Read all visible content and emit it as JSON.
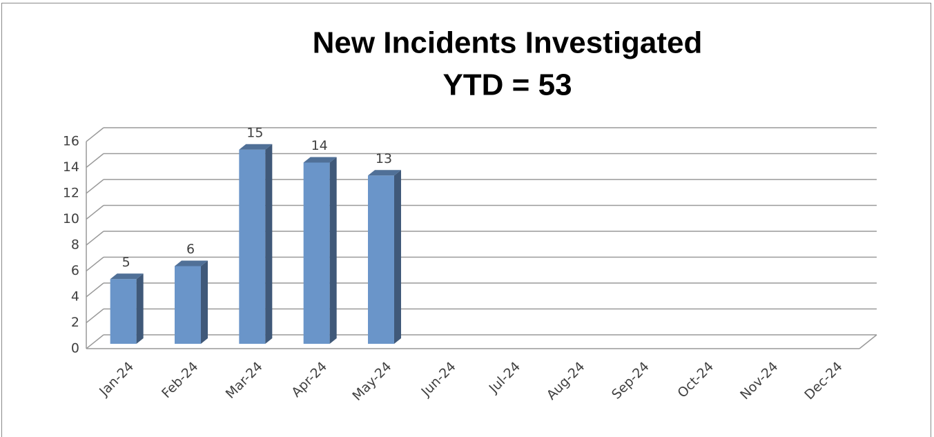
{
  "chart_data": {
    "type": "bar3d",
    "title": [
      "New Incidents Investigated",
      "YTD = 53"
    ],
    "categories": [
      "Jan-24",
      "Feb-24",
      "Mar-24",
      "Apr-24",
      "May-24",
      "Jun-24",
      "Jul-24",
      "Aug-24",
      "Sep-24",
      "Oct-24",
      "Nov-24",
      "Dec-24"
    ],
    "values": [
      5,
      6,
      15,
      14,
      13,
      null,
      null,
      null,
      null,
      null,
      null,
      null
    ],
    "color": "#6a95c9",
    "ylim": [
      0,
      16
    ],
    "yticks": [
      0,
      2,
      4,
      6,
      8,
      10,
      12,
      14,
      16
    ],
    "grid": true
  }
}
